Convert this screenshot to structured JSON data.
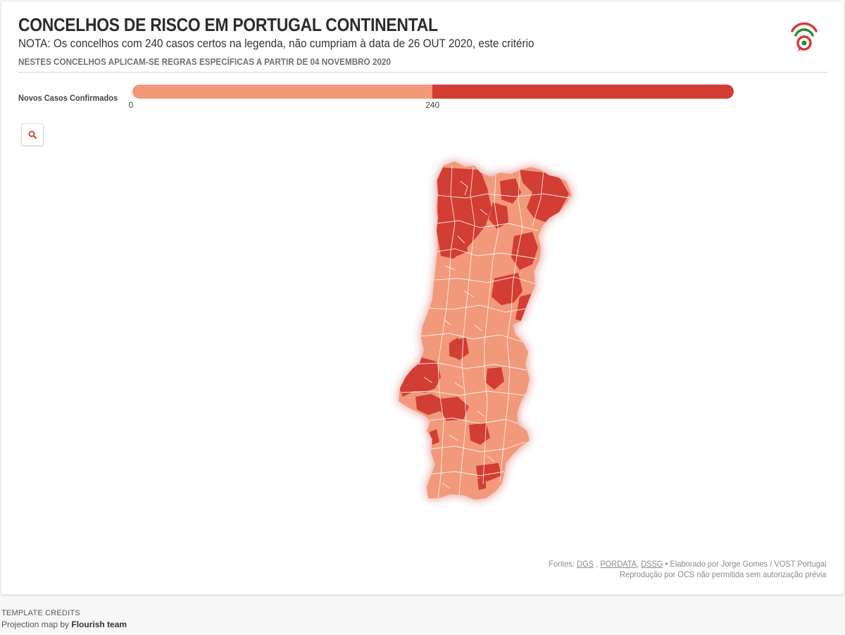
{
  "header": {
    "title": "CONCELHOS DE RISCO EM PORTUGAL CONTINENTAL",
    "subtitle": "NOTA: Os concelhos com 240 casos certos na legenda, não cumpriam à data de 26 OUT 2020, este critério",
    "note": "NESTES CONCELHOS APLICAM-SE REGRAS ESPECÍFICAS A PARTIR DE 04 NOVEMBRO 2020",
    "logo_icon": "vost-portugal-logo"
  },
  "legend": {
    "title": "Novos Casos Confirmados",
    "min_label": "0",
    "threshold_label": "240",
    "min_value": 0,
    "threshold_value": 240,
    "max_value": 481,
    "low_color": "#f1997a",
    "high_color": "#d23d34"
  },
  "controls": {
    "search_icon": "search-icon"
  },
  "map": {
    "region": "Portugal Continental",
    "fill_low": "#f1997a",
    "fill_high": "#d23d34",
    "border_color": "#ffffff"
  },
  "footer": {
    "sources_prefix": "Fontes:",
    "source_1": "DGS",
    "source_2": "PORDATA",
    "source_3": "DSSG",
    "author": "• Elaborado por Jorge Gomes / VOST Portugal",
    "rights": "Reprodução por OCS não permitida sem autorização prévia"
  },
  "credits": {
    "label": "TEMPLATE CREDITS",
    "text": "Projection map by",
    "team": "Flourish team"
  }
}
